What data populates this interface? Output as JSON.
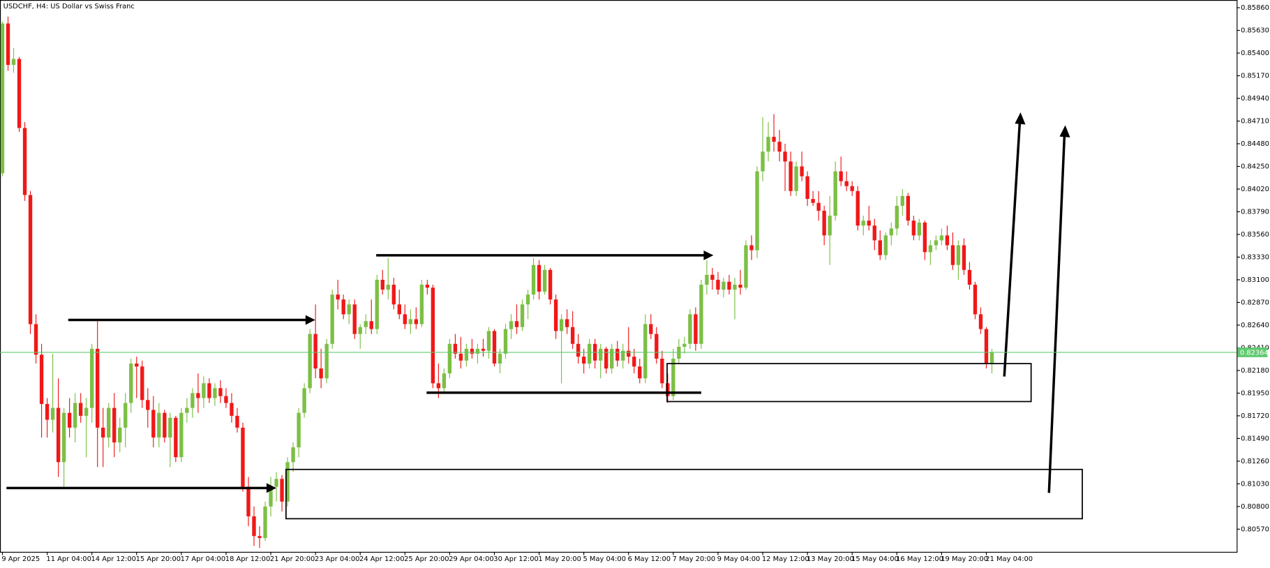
{
  "chart_data": {
    "type": "candlestick",
    "title": "USDCHF, H4:  US Dollar vs Swiss Franc",
    "up_color": "#7cbf45",
    "down_color": "#f01818",
    "current_price": 0.82364,
    "current_price_color": "#5fc96f",
    "ylim": [
      0.8034,
      0.8593
    ],
    "yticks": [
      {
        "value": 0.8586,
        "label": "0.85860"
      },
      {
        "value": 0.8563,
        "label": "0.85630"
      },
      {
        "value": 0.854,
        "label": "0.85400"
      },
      {
        "value": 0.8517,
        "label": "0.85170"
      },
      {
        "value": 0.8494,
        "label": "0.84940"
      },
      {
        "value": 0.8471,
        "label": "0.84710"
      },
      {
        "value": 0.8448,
        "label": "0.84480"
      },
      {
        "value": 0.8425,
        "label": "0.84250"
      },
      {
        "value": 0.8402,
        "label": "0.84020"
      },
      {
        "value": 0.8379,
        "label": "0.83790"
      },
      {
        "value": 0.8356,
        "label": "0.83560"
      },
      {
        "value": 0.8333,
        "label": "0.83330"
      },
      {
        "value": 0.831,
        "label": "0.83100"
      },
      {
        "value": 0.8287,
        "label": "0.82870"
      },
      {
        "value": 0.8264,
        "label": "0.82640"
      },
      {
        "value": 0.8241,
        "label": "0.82410"
      },
      {
        "value": 0.8218,
        "label": "0.82180"
      },
      {
        "value": 0.8195,
        "label": "0.81950"
      },
      {
        "value": 0.8172,
        "label": "0.81720"
      },
      {
        "value": 0.8149,
        "label": "0.81490"
      },
      {
        "value": 0.8126,
        "label": "0.81260"
      },
      {
        "value": 0.8103,
        "label": "0.81030"
      },
      {
        "value": 0.808,
        "label": "0.80800"
      },
      {
        "value": 0.8057,
        "label": "0.80570"
      }
    ],
    "categories": [
      "9 Apr 2025",
      null,
      null,
      null,
      null,
      null,
      null,
      null,
      "11 Apr 04:00",
      null,
      null,
      null,
      null,
      null,
      null,
      null,
      "14 Apr 12:00",
      null,
      null,
      null,
      null,
      null,
      null,
      null,
      "15 Apr 20:00",
      null,
      null,
      null,
      null,
      null,
      null,
      null,
      "17 Apr 04:00",
      null,
      null,
      null,
      null,
      null,
      null,
      null,
      "18 Apr 12:00",
      null,
      null,
      null,
      null,
      null,
      null,
      null,
      "21 Apr 20:00",
      null,
      null,
      null,
      null,
      null,
      null,
      null,
      "23 Apr 04:00",
      null,
      null,
      null,
      null,
      null,
      null,
      null,
      "24 Apr 12:00",
      null,
      null,
      null,
      null,
      null,
      null,
      null,
      "25 Apr 20:00",
      null,
      null,
      null,
      null,
      null,
      null,
      null,
      "29 Apr 04:00",
      null,
      null,
      null,
      null,
      null,
      null,
      null,
      "30 Apr 12:00",
      null,
      null,
      null,
      null,
      null,
      null,
      null,
      "1 May 20:00",
      null,
      null,
      null,
      null,
      null,
      null,
      null,
      "5 May 04:00",
      null,
      null,
      null,
      null,
      null,
      null,
      null,
      "6 May 12:00",
      null,
      null,
      null,
      null,
      null,
      null,
      null,
      "7 May 20:00",
      null,
      null,
      null,
      null,
      null,
      null,
      null,
      "9 May 04:00",
      null,
      null,
      null,
      null,
      null,
      null,
      null,
      "12 May 12:00",
      null,
      null,
      null,
      null,
      null,
      null,
      null,
      "13 May 20:00",
      null,
      null,
      null,
      null,
      null,
      null,
      null,
      "15 May 04:00",
      null,
      null,
      null,
      null,
      null,
      null,
      null,
      "16 May 12:00",
      null,
      null,
      null,
      null,
      null,
      null,
      null,
      "19 May 20:00",
      null,
      null,
      null,
      null,
      null,
      null,
      null,
      "21 May 04:00",
      null
    ],
    "ohlc": [
      [
        0.8418,
        0.8572,
        0.8415,
        0.857
      ],
      [
        0.857,
        0.8577,
        0.8522,
        0.8528
      ],
      [
        0.8528,
        0.8545,
        0.852,
        0.8534
      ],
      [
        0.8534,
        0.8536,
        0.846,
        0.8464
      ],
      [
        0.8464,
        0.847,
        0.839,
        0.8396
      ],
      [
        0.8396,
        0.84,
        0.8255,
        0.8265
      ],
      [
        0.8265,
        0.8275,
        0.8225,
        0.8234
      ],
      [
        0.8234,
        0.8245,
        0.815,
        0.8184
      ],
      [
        0.8184,
        0.819,
        0.815,
        0.8168
      ],
      [
        0.8168,
        0.8235,
        0.8155,
        0.818
      ],
      [
        0.818,
        0.821,
        0.811,
        0.8125
      ],
      [
        0.8125,
        0.818,
        0.81,
        0.8175
      ],
      [
        0.8175,
        0.819,
        0.815,
        0.816
      ],
      [
        0.816,
        0.8195,
        0.8145,
        0.8185
      ],
      [
        0.8185,
        0.8195,
        0.8165,
        0.8172
      ],
      [
        0.8172,
        0.819,
        0.813,
        0.818
      ],
      [
        0.818,
        0.8245,
        0.8165,
        0.824
      ],
      [
        0.824,
        0.8268,
        0.812,
        0.816
      ],
      [
        0.816,
        0.818,
        0.812,
        0.815
      ],
      [
        0.815,
        0.8185,
        0.814,
        0.818
      ],
      [
        0.818,
        0.8195,
        0.813,
        0.8145
      ],
      [
        0.8145,
        0.817,
        0.8135,
        0.816
      ],
      [
        0.816,
        0.8195,
        0.814,
        0.8185
      ],
      [
        0.8185,
        0.823,
        0.8175,
        0.8225
      ],
      [
        0.8225,
        0.8232,
        0.819,
        0.8222
      ],
      [
        0.8222,
        0.8228,
        0.818,
        0.8188
      ],
      [
        0.8188,
        0.82,
        0.816,
        0.8178
      ],
      [
        0.8178,
        0.8192,
        0.814,
        0.815
      ],
      [
        0.815,
        0.8185,
        0.814,
        0.8175
      ],
      [
        0.8175,
        0.8178,
        0.8145,
        0.815
      ],
      [
        0.815,
        0.8175,
        0.812,
        0.817
      ],
      [
        0.817,
        0.8172,
        0.8125,
        0.813
      ],
      [
        0.813,
        0.818,
        0.8125,
        0.8175
      ],
      [
        0.8175,
        0.819,
        0.8165,
        0.818
      ],
      [
        0.818,
        0.82,
        0.817,
        0.8195
      ],
      [
        0.8195,
        0.8215,
        0.8175,
        0.819
      ],
      [
        0.819,
        0.8212,
        0.818,
        0.8205
      ],
      [
        0.8205,
        0.821,
        0.8185,
        0.819
      ],
      [
        0.819,
        0.8205,
        0.8182,
        0.82
      ],
      [
        0.82,
        0.8208,
        0.8185,
        0.8192
      ],
      [
        0.8192,
        0.82,
        0.818,
        0.8185
      ],
      [
        0.8185,
        0.8195,
        0.8165,
        0.8172
      ],
      [
        0.8172,
        0.818,
        0.8155,
        0.816
      ],
      [
        0.816,
        0.8165,
        0.8095,
        0.81
      ],
      [
        0.81,
        0.811,
        0.806,
        0.807
      ],
      [
        0.807,
        0.808,
        0.804,
        0.805
      ],
      [
        0.805,
        0.806,
        0.8038,
        0.8048
      ],
      [
        0.8048,
        0.8085,
        0.8045,
        0.808
      ],
      [
        0.808,
        0.811,
        0.807,
        0.81
      ],
      [
        0.81,
        0.8115,
        0.8085,
        0.8108
      ],
      [
        0.8108,
        0.8112,
        0.8075,
        0.8085
      ],
      [
        0.8085,
        0.813,
        0.808,
        0.8125
      ],
      [
        0.8125,
        0.8145,
        0.8115,
        0.814
      ],
      [
        0.814,
        0.818,
        0.813,
        0.8175
      ],
      [
        0.8175,
        0.8205,
        0.817,
        0.82
      ],
      [
        0.82,
        0.826,
        0.8195,
        0.8255
      ],
      [
        0.8255,
        0.8285,
        0.821,
        0.822
      ],
      [
        0.822,
        0.824,
        0.82,
        0.821
      ],
      [
        0.821,
        0.825,
        0.8205,
        0.8245
      ],
      [
        0.8245,
        0.83,
        0.824,
        0.8295
      ],
      [
        0.8295,
        0.831,
        0.828,
        0.829
      ],
      [
        0.829,
        0.8295,
        0.827,
        0.8275
      ],
      [
        0.8275,
        0.829,
        0.8265,
        0.8285
      ],
      [
        0.8285,
        0.829,
        0.825,
        0.8255
      ],
      [
        0.8255,
        0.8265,
        0.824,
        0.8262
      ],
      [
        0.8262,
        0.8275,
        0.8255,
        0.8268
      ],
      [
        0.8268,
        0.829,
        0.8255,
        0.826
      ],
      [
        0.826,
        0.8315,
        0.8255,
        0.831
      ],
      [
        0.831,
        0.832,
        0.8295,
        0.83
      ],
      [
        0.83,
        0.8332,
        0.829,
        0.8305
      ],
      [
        0.8305,
        0.8312,
        0.828,
        0.8285
      ],
      [
        0.8285,
        0.83,
        0.827,
        0.8275
      ],
      [
        0.8275,
        0.8285,
        0.826,
        0.8265
      ],
      [
        0.8265,
        0.828,
        0.8255,
        0.827
      ],
      [
        0.827,
        0.8282,
        0.826,
        0.8265
      ],
      [
        0.8265,
        0.831,
        0.8262,
        0.8305
      ],
      [
        0.8305,
        0.831,
        0.8295,
        0.8302
      ],
      [
        0.8302,
        0.8305,
        0.82,
        0.8205
      ],
      [
        0.8205,
        0.8225,
        0.819,
        0.82
      ],
      [
        0.82,
        0.822,
        0.8195,
        0.8215
      ],
      [
        0.8215,
        0.825,
        0.821,
        0.8245
      ],
      [
        0.8245,
        0.8255,
        0.823,
        0.8235
      ],
      [
        0.8235,
        0.8252,
        0.822,
        0.8228
      ],
      [
        0.8228,
        0.8245,
        0.8222,
        0.824
      ],
      [
        0.824,
        0.825,
        0.823,
        0.8235
      ],
      [
        0.8235,
        0.8245,
        0.8225,
        0.824
      ],
      [
        0.824,
        0.825,
        0.8232,
        0.8238
      ],
      [
        0.8238,
        0.8262,
        0.823,
        0.8258
      ],
      [
        0.8258,
        0.826,
        0.8222,
        0.8225
      ],
      [
        0.8225,
        0.824,
        0.8215,
        0.8235
      ],
      [
        0.8235,
        0.8265,
        0.823,
        0.826
      ],
      [
        0.826,
        0.8275,
        0.825,
        0.8268
      ],
      [
        0.8268,
        0.8285,
        0.8255,
        0.8262
      ],
      [
        0.8262,
        0.829,
        0.8258,
        0.8285
      ],
      [
        0.8285,
        0.83,
        0.827,
        0.8295
      ],
      [
        0.8295,
        0.8332,
        0.829,
        0.8325
      ],
      [
        0.8325,
        0.833,
        0.829,
        0.8298
      ],
      [
        0.8298,
        0.8325,
        0.8295,
        0.832
      ],
      [
        0.832,
        0.8322,
        0.8285,
        0.829
      ],
      [
        0.829,
        0.8295,
        0.825,
        0.8258
      ],
      [
        0.8258,
        0.8275,
        0.8205,
        0.827
      ],
      [
        0.827,
        0.828,
        0.8255,
        0.8262
      ],
      [
        0.8262,
        0.8278,
        0.824,
        0.8245
      ],
      [
        0.8245,
        0.8255,
        0.8225,
        0.8232
      ],
      [
        0.8232,
        0.824,
        0.8215,
        0.8225
      ],
      [
        0.8225,
        0.825,
        0.822,
        0.8245
      ],
      [
        0.8245,
        0.825,
        0.822,
        0.8228
      ],
      [
        0.8228,
        0.8245,
        0.821,
        0.824
      ],
      [
        0.824,
        0.8242,
        0.8215,
        0.822
      ],
      [
        0.822,
        0.8245,
        0.8215,
        0.824
      ],
      [
        0.824,
        0.8248,
        0.8222,
        0.8228
      ],
      [
        0.8228,
        0.8245,
        0.822,
        0.8238
      ],
      [
        0.8238,
        0.8262,
        0.8225,
        0.8232
      ],
      [
        0.8232,
        0.824,
        0.8215,
        0.8222
      ],
      [
        0.8222,
        0.823,
        0.8205,
        0.821
      ],
      [
        0.821,
        0.8275,
        0.8205,
        0.8265
      ],
      [
        0.8265,
        0.8275,
        0.825,
        0.8255
      ],
      [
        0.8255,
        0.8262,
        0.8225,
        0.823
      ],
      [
        0.823,
        0.8238,
        0.82,
        0.8205
      ],
      [
        0.8205,
        0.8215,
        0.8185,
        0.8192
      ],
      [
        0.8192,
        0.824,
        0.8188,
        0.823
      ],
      [
        0.823,
        0.825,
        0.8225,
        0.8242
      ],
      [
        0.8242,
        0.8252,
        0.8235,
        0.8245
      ],
      [
        0.8245,
        0.828,
        0.824,
        0.8275
      ],
      [
        0.8275,
        0.8282,
        0.8238,
        0.8245
      ],
      [
        0.8245,
        0.831,
        0.824,
        0.8305
      ],
      [
        0.8305,
        0.833,
        0.8295,
        0.8315
      ],
      [
        0.8315,
        0.8322,
        0.83,
        0.831
      ],
      [
        0.831,
        0.8318,
        0.8295,
        0.83
      ],
      [
        0.83,
        0.8312,
        0.8292,
        0.8308
      ],
      [
        0.8308,
        0.8315,
        0.8295,
        0.83
      ],
      [
        0.83,
        0.8312,
        0.827,
        0.8305
      ],
      [
        0.8305,
        0.832,
        0.8295,
        0.8302
      ],
      [
        0.8302,
        0.835,
        0.83,
        0.8345
      ],
      [
        0.8345,
        0.8355,
        0.833,
        0.834
      ],
      [
        0.834,
        0.8425,
        0.8332,
        0.842
      ],
      [
        0.842,
        0.8475,
        0.841,
        0.844
      ],
      [
        0.844,
        0.847,
        0.843,
        0.8455
      ],
      [
        0.8455,
        0.8478,
        0.844,
        0.845
      ],
      [
        0.845,
        0.8462,
        0.843,
        0.844
      ],
      [
        0.844,
        0.8448,
        0.84,
        0.843
      ],
      [
        0.843,
        0.844,
        0.8395,
        0.84
      ],
      [
        0.84,
        0.843,
        0.8395,
        0.8425
      ],
      [
        0.8425,
        0.844,
        0.841,
        0.8415
      ],
      [
        0.8415,
        0.842,
        0.8385,
        0.8392
      ],
      [
        0.8392,
        0.84,
        0.8385,
        0.8388
      ],
      [
        0.8388,
        0.84,
        0.837,
        0.838
      ],
      [
        0.838,
        0.8385,
        0.8345,
        0.8355
      ],
      [
        0.8355,
        0.8395,
        0.8325,
        0.8375
      ],
      [
        0.8375,
        0.843,
        0.837,
        0.842
      ],
      [
        0.842,
        0.8435,
        0.8405,
        0.841
      ],
      [
        0.841,
        0.842,
        0.84,
        0.8405
      ],
      [
        0.8405,
        0.841,
        0.8395,
        0.84
      ],
      [
        0.84,
        0.8405,
        0.836,
        0.8365
      ],
      [
        0.8365,
        0.8375,
        0.8355,
        0.837
      ],
      [
        0.837,
        0.8385,
        0.836,
        0.8365
      ],
      [
        0.8365,
        0.8372,
        0.834,
        0.835
      ],
      [
        0.835,
        0.836,
        0.833,
        0.8335
      ],
      [
        0.8335,
        0.8358,
        0.833,
        0.8355
      ],
      [
        0.8355,
        0.8368,
        0.8345,
        0.8362
      ],
      [
        0.8362,
        0.8395,
        0.8355,
        0.8385
      ],
      [
        0.8385,
        0.8402,
        0.8375,
        0.8395
      ],
      [
        0.8395,
        0.8398,
        0.8365,
        0.837
      ],
      [
        0.837,
        0.8375,
        0.835,
        0.8355
      ],
      [
        0.8355,
        0.8372,
        0.835,
        0.8368
      ],
      [
        0.8368,
        0.837,
        0.833,
        0.8338
      ],
      [
        0.8338,
        0.835,
        0.8325,
        0.8345
      ],
      [
        0.8345,
        0.8355,
        0.834,
        0.835
      ],
      [
        0.835,
        0.8362,
        0.8345,
        0.8355
      ],
      [
        0.8355,
        0.8365,
        0.834,
        0.8345
      ],
      [
        0.8345,
        0.8358,
        0.832,
        0.8325
      ],
      [
        0.8325,
        0.835,
        0.831,
        0.8345
      ],
      [
        0.8345,
        0.8352,
        0.8315,
        0.832
      ],
      [
        0.832,
        0.8328,
        0.83,
        0.8305
      ],
      [
        0.8305,
        0.8308,
        0.827,
        0.8275
      ],
      [
        0.8275,
        0.8282,
        0.8255,
        0.826
      ],
      [
        0.826,
        0.8262,
        0.822,
        0.8225
      ],
      [
        0.8225,
        0.824,
        0.8215,
        0.8236
      ]
    ]
  }
}
